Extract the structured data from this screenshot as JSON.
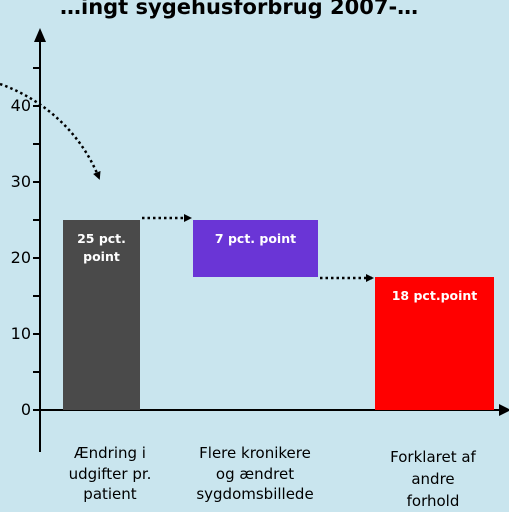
{
  "chart_data": {
    "type": "bar",
    "title": "…ingt sygehusforbrug 2007-…",
    "categories": [
      "Ændring i udgifter pr. patient",
      "Flere kronikere og ændret sygdomsbillede",
      "Forklaret af andre forhold"
    ],
    "category_lines": [
      [
        "Ændring i",
        "udgifter pr.",
        "patient"
      ],
      [
        "Flere kronikere",
        "og ændret",
        "sygdomsbillede"
      ],
      [
        "Forklaret af",
        "andre",
        "forhold"
      ]
    ],
    "bars": [
      {
        "base": 0,
        "top": 25,
        "value": 25,
        "label_lines": [
          "25 pct.",
          "point"
        ],
        "color": "#4a4a4a"
      },
      {
        "base": 17.5,
        "top": 25,
        "value": 7,
        "label_lines": [
          "7 pct. point"
        ],
        "color": "#6a35d6"
      },
      {
        "base": 0,
        "top": 17.5,
        "value": 18,
        "label_lines": [
          "18 pct.point"
        ],
        "color": "#ff0000"
      }
    ],
    "y_ticks": [
      "0",
      "10",
      "20",
      "30",
      "40"
    ],
    "y_tick_values": [
      0,
      10,
      20,
      30,
      40
    ],
    "ylim": [
      0,
      50
    ],
    "grid": false,
    "colors": {
      "background": "#c9e5ee",
      "axis": "#000000",
      "connector": "#000000"
    }
  }
}
